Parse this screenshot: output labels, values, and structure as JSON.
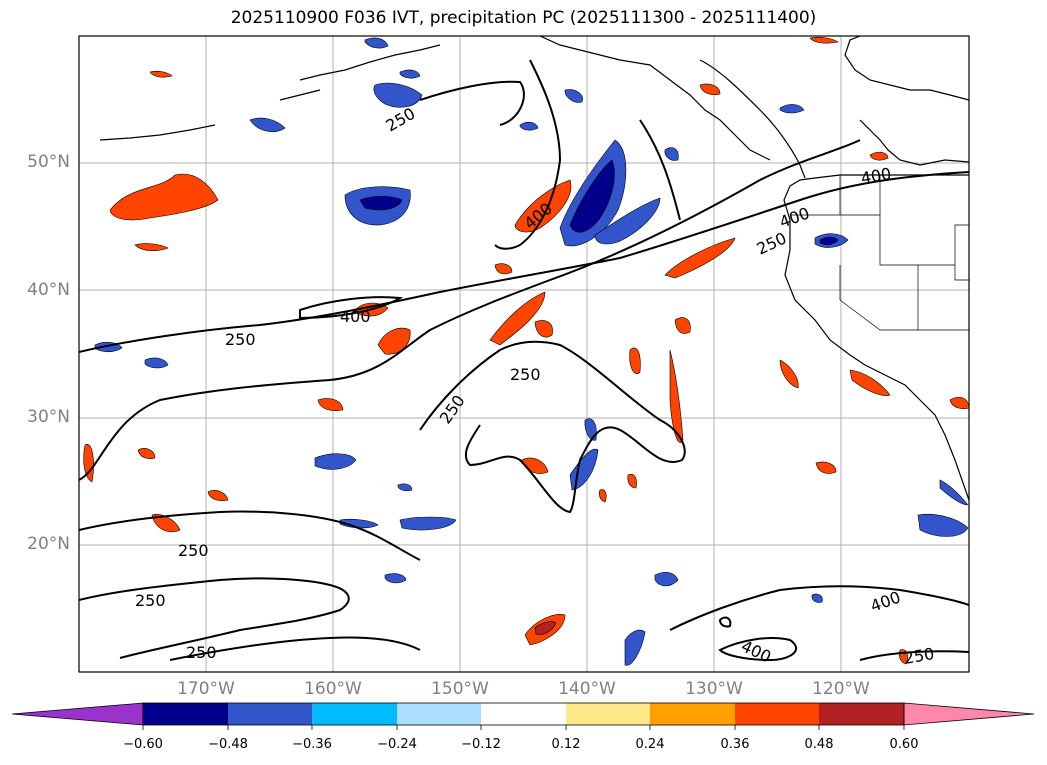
{
  "title": "2025110900 F036 IVT, precipitation PC (2025111300 - 2025111400)",
  "map": {
    "lat_labels": [
      "50°N",
      "40°N",
      "30°N",
      "20°N"
    ],
    "lon_labels": [
      "170°W",
      "160°W",
      "150°W",
      "140°W",
      "130°W",
      "120°W"
    ],
    "contour_labels": [
      "250",
      "400",
      "250",
      "400",
      "250",
      "250",
      "400",
      "250",
      "400",
      "250",
      "400",
      "250",
      "250",
      "400",
      "250",
      "250"
    ],
    "contour_color": "#000000",
    "gridline_color": "#b0b0b0"
  },
  "colorbar": {
    "ticks": [
      "−0.60",
      "−0.48",
      "−0.36",
      "−0.24",
      "−0.12",
      "0.12",
      "0.24",
      "0.36",
      "0.48",
      "0.60"
    ],
    "colors": [
      "#9933cc",
      "#00008b",
      "#3355cc",
      "#00bbff",
      "#aaddff",
      "#ffffff",
      "#ffe88a",
      "#ffa000",
      "#ff4400",
      "#b22222",
      "#ff88aa"
    ],
    "extend": "both"
  }
}
